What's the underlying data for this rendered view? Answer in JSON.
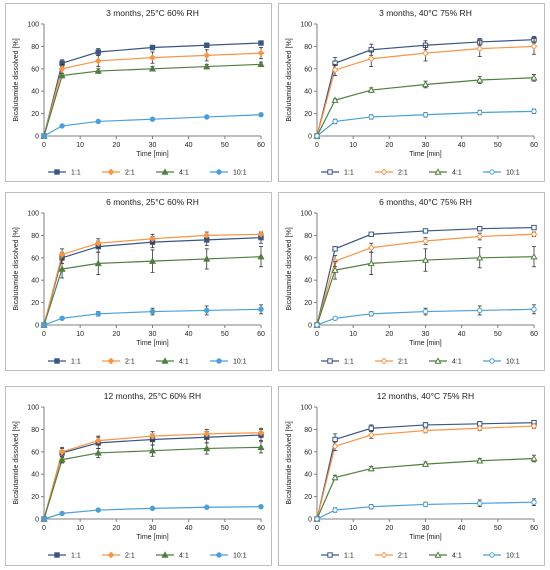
{
  "chart_data": [
    {
      "type": "line",
      "title": "3 months, 25°C 60% RH",
      "xlabel": "Time [min]",
      "ylabel": "Bicalutamide dissolved [%]",
      "xlim": [
        0,
        60
      ],
      "ylim": [
        0,
        100
      ],
      "xticks": [
        0,
        10,
        20,
        30,
        40,
        50,
        60
      ],
      "yticks": [
        0,
        20,
        40,
        60,
        80,
        100
      ],
      "legend": "bottom",
      "x": [
        0,
        5,
        15,
        30,
        45,
        60
      ],
      "series": [
        {
          "name": "1:1",
          "color": "#3a5683",
          "marker": "square",
          "filled": true,
          "values": [
            0,
            65,
            75,
            79,
            81,
            83
          ],
          "errors": [
            0,
            3,
            3,
            2,
            2,
            1
          ]
        },
        {
          "name": "2:1",
          "color": "#f79646",
          "marker": "diamond",
          "filled": true,
          "values": [
            0,
            60,
            67,
            70,
            72,
            74
          ],
          "errors": [
            0,
            4,
            5,
            5,
            5,
            5
          ]
        },
        {
          "name": "4:1",
          "color": "#4f7f3f",
          "marker": "triangle",
          "filled": true,
          "values": [
            0,
            54,
            58,
            60,
            62,
            64
          ],
          "errors": [
            0,
            2,
            2,
            2,
            2,
            2
          ]
        },
        {
          "name": "10:1",
          "color": "#4a9fd8",
          "marker": "circle",
          "filled": true,
          "values": [
            0,
            9,
            13,
            15,
            17,
            19
          ],
          "errors": [
            0,
            0.5,
            0.5,
            0.5,
            0.5,
            0.5
          ]
        }
      ]
    },
    {
      "type": "line",
      "title": "3 months, 40°C 75% RH",
      "xlabel": "Time [min]",
      "ylabel": "Bicalutamide dissolved [%]",
      "xlim": [
        0,
        60
      ],
      "ylim": [
        0,
        100
      ],
      "xticks": [
        0,
        10,
        20,
        30,
        40,
        50,
        60
      ],
      "yticks": [
        0,
        20,
        40,
        60,
        80,
        100
      ],
      "legend": "bottom",
      "x": [
        0,
        5,
        15,
        30,
        45,
        60
      ],
      "series": [
        {
          "name": "1:1",
          "color": "#3a5683",
          "marker": "square",
          "filled": false,
          "values": [
            0,
            65,
            77,
            81,
            84,
            86
          ],
          "errors": [
            0,
            5,
            5,
            4,
            3,
            3
          ]
        },
        {
          "name": "2:1",
          "color": "#f79646",
          "marker": "diamond",
          "filled": false,
          "values": [
            0,
            59,
            69,
            74,
            78,
            80
          ],
          "errors": [
            0,
            5,
            7,
            7,
            7,
            7
          ]
        },
        {
          "name": "4:1",
          "color": "#4f7f3f",
          "marker": "triangle",
          "filled": false,
          "values": [
            0,
            32,
            41,
            46,
            50,
            52
          ],
          "errors": [
            0,
            1,
            2,
            3,
            3,
            3
          ]
        },
        {
          "name": "10:1",
          "color": "#4a9fd8",
          "marker": "circle",
          "filled": false,
          "values": [
            0,
            13,
            17,
            19,
            21,
            22
          ],
          "errors": [
            0,
            2,
            2,
            2,
            2,
            2
          ]
        }
      ]
    },
    {
      "type": "line",
      "title": "6 months, 25°C 60% RH",
      "xlabel": "Time [min]",
      "ylabel": "Bicalutamide dissolved [%]",
      "xlim": [
        0,
        60
      ],
      "ylim": [
        0,
        100
      ],
      "xticks": [
        0,
        10,
        20,
        30,
        40,
        50,
        60
      ],
      "yticks": [
        0,
        20,
        40,
        60,
        80,
        100
      ],
      "legend": "bottom",
      "x": [
        0,
        5,
        15,
        30,
        45,
        60
      ],
      "series": [
        {
          "name": "1:1",
          "color": "#3a5683",
          "marker": "square",
          "filled": true,
          "values": [
            0,
            60,
            70,
            74,
            76,
            78
          ],
          "errors": [
            0,
            5,
            5,
            5,
            5,
            5
          ]
        },
        {
          "name": "2:1",
          "color": "#f79646",
          "marker": "diamond",
          "filled": true,
          "values": [
            0,
            63,
            73,
            77,
            80,
            81
          ],
          "errors": [
            0,
            5,
            4,
            4,
            3,
            2
          ]
        },
        {
          "name": "4:1",
          "color": "#4f7f3f",
          "marker": "triangle",
          "filled": true,
          "values": [
            0,
            50,
            55,
            57,
            59,
            61
          ],
          "errors": [
            0,
            8,
            10,
            10,
            9,
            9
          ]
        },
        {
          "name": "10:1",
          "color": "#4a9fd8",
          "marker": "circle",
          "filled": true,
          "values": [
            0,
            6,
            10,
            12,
            13,
            14
          ],
          "errors": [
            0,
            1,
            2,
            3,
            4,
            4
          ]
        }
      ]
    },
    {
      "type": "line",
      "title": "6 months, 40°C 75% RH",
      "xlabel": "Time [min]",
      "ylabel": "Bicalutamide dissolved [%]",
      "xlim": [
        0,
        60
      ],
      "ylim": [
        0,
        100
      ],
      "xticks": [
        0,
        10,
        20,
        30,
        40,
        50,
        60
      ],
      "yticks": [
        0,
        20,
        40,
        60,
        80,
        100
      ],
      "legend": "bottom",
      "x": [
        0,
        5,
        15,
        30,
        45,
        60
      ],
      "series": [
        {
          "name": "1:1",
          "color": "#3a5683",
          "marker": "square",
          "filled": false,
          "values": [
            0,
            68,
            81,
            84,
            86,
            87
          ],
          "errors": [
            0,
            2,
            1,
            1,
            1,
            1
          ]
        },
        {
          "name": "2:1",
          "color": "#f79646",
          "marker": "diamond",
          "filled": false,
          "values": [
            0,
            57,
            69,
            75,
            79,
            81
          ],
          "errors": [
            0,
            5,
            4,
            3,
            3,
            2
          ]
        },
        {
          "name": "4:1",
          "color": "#4f7f3f",
          "marker": "triangle",
          "filled": false,
          "values": [
            0,
            49,
            55,
            58,
            60,
            61
          ],
          "errors": [
            0,
            8,
            10,
            10,
            9,
            9
          ]
        },
        {
          "name": "10:1",
          "color": "#4a9fd8",
          "marker": "circle",
          "filled": false,
          "values": [
            0,
            6,
            10,
            12,
            13,
            14
          ],
          "errors": [
            0,
            1,
            2,
            3,
            4,
            4
          ]
        }
      ]
    },
    {
      "type": "line",
      "title": "12 months, 25°C 60% RH",
      "xlabel": "Time [min]",
      "ylabel": "Bicalutamide dissolved [%]",
      "xlim": [
        0,
        60
      ],
      "ylim": [
        0,
        100
      ],
      "xticks": [
        0,
        10,
        20,
        30,
        40,
        50,
        60
      ],
      "yticks": [
        0,
        20,
        40,
        60,
        80,
        100
      ],
      "legend": "bottom",
      "x": [
        0,
        5,
        15,
        30,
        45,
        60
      ],
      "series": [
        {
          "name": "1:1",
          "color": "#3a5683",
          "marker": "square",
          "filled": true,
          "values": [
            0,
            59,
            68,
            71,
            73,
            75
          ],
          "errors": [
            0,
            4,
            5,
            5,
            5,
            5
          ]
        },
        {
          "name": "2:1",
          "color": "#f79646",
          "marker": "diamond",
          "filled": true,
          "values": [
            0,
            60,
            70,
            74,
            76,
            77
          ],
          "errors": [
            0,
            4,
            4,
            4,
            4,
            4
          ]
        },
        {
          "name": "4:1",
          "color": "#4f7f3f",
          "marker": "triangle",
          "filled": true,
          "values": [
            0,
            53,
            59,
            61,
            63,
            64
          ],
          "errors": [
            0,
            3,
            4,
            5,
            5,
            5
          ]
        },
        {
          "name": "10:1",
          "color": "#4a9fd8",
          "marker": "circle",
          "filled": true,
          "values": [
            0,
            5,
            8,
            9.5,
            10.5,
            11
          ],
          "errors": [
            0,
            0.5,
            0.5,
            0.5,
            0.5,
            1
          ]
        }
      ]
    },
    {
      "type": "line",
      "title": "12 months, 40°C 75% RH",
      "xlabel": "Time [min]",
      "ylabel": "Bicalutamide dissolved [%]",
      "xlim": [
        0,
        60
      ],
      "ylim": [
        0,
        100
      ],
      "xticks": [
        0,
        10,
        20,
        30,
        40,
        50,
        60
      ],
      "yticks": [
        0,
        20,
        40,
        60,
        80,
        100
      ],
      "legend": "bottom",
      "x": [
        0,
        5,
        15,
        30,
        45,
        60
      ],
      "series": [
        {
          "name": "1:1",
          "color": "#3a5683",
          "marker": "square",
          "filled": false,
          "values": [
            0,
            71,
            81,
            84,
            85,
            86
          ],
          "errors": [
            0,
            5,
            3,
            2,
            2,
            2
          ]
        },
        {
          "name": "2:1",
          "color": "#f79646",
          "marker": "diamond",
          "filled": false,
          "values": [
            0,
            65,
            75,
            79,
            81,
            83
          ],
          "errors": [
            0,
            4,
            3,
            2,
            2,
            2
          ]
        },
        {
          "name": "4:1",
          "color": "#4f7f3f",
          "marker": "triangle",
          "filled": false,
          "values": [
            0,
            37,
            45,
            49,
            52,
            54
          ],
          "errors": [
            0,
            2,
            2,
            2,
            2,
            3
          ]
        },
        {
          "name": "10:1",
          "color": "#4a9fd8",
          "marker": "circle",
          "filled": false,
          "values": [
            0,
            8,
            11,
            13,
            14,
            15
          ],
          "errors": [
            0,
            2,
            2,
            2,
            3,
            3
          ]
        }
      ]
    }
  ]
}
